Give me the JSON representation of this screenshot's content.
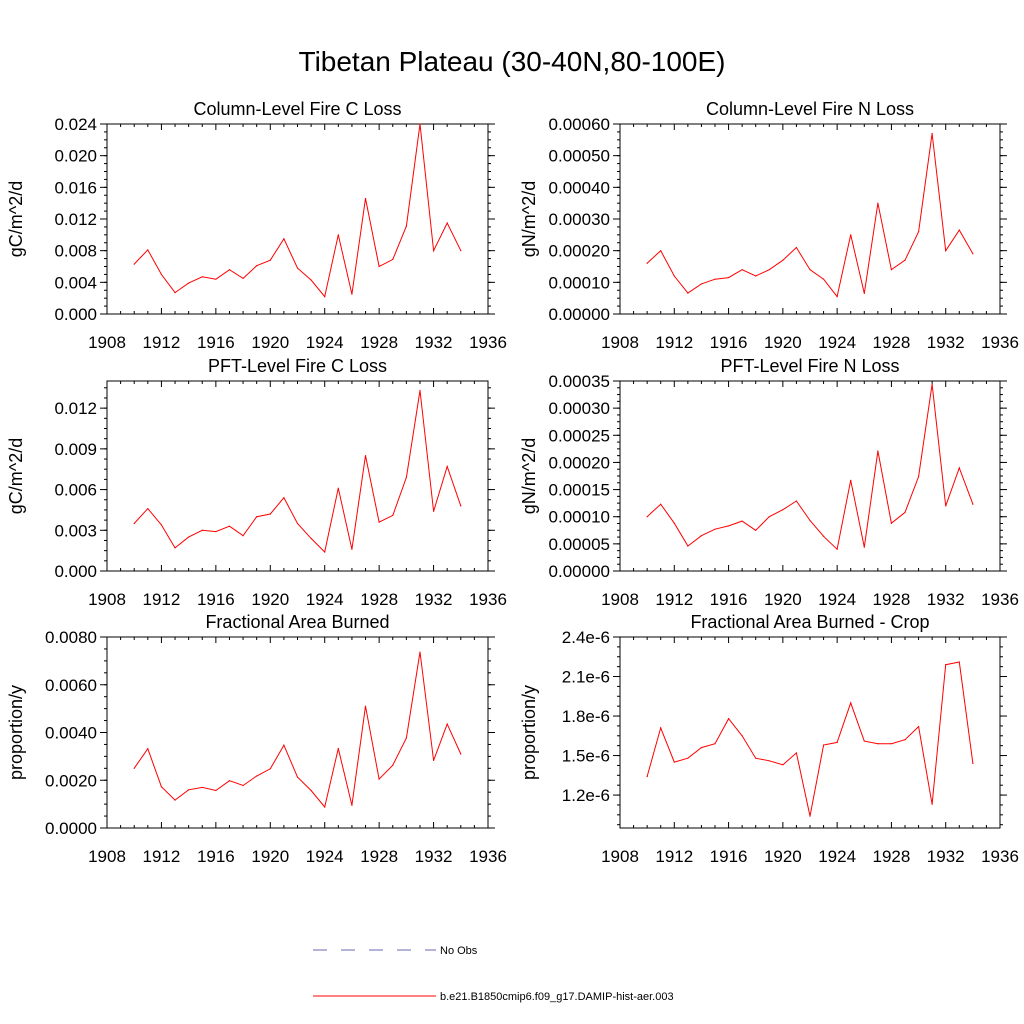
{
  "figure": {
    "title": "Tibetan Plateau (30-40N,80-100E)"
  },
  "legend": {
    "entries": [
      {
        "label": "No Obs",
        "color": "#6a6ab4",
        "dash": true
      },
      {
        "label": "b.e21.B1850cmip6.f09_g17.DAMIP-hist-aer.003",
        "color": "#ff0000",
        "dash": false
      }
    ]
  },
  "chart_data": [
    {
      "type": "line",
      "title": "Column-Level Fire C Loss",
      "ylabel": "gC/m^2/d",
      "xlim": [
        1908,
        1936
      ],
      "xticks": [
        1908,
        1912,
        1916,
        1920,
        1924,
        1928,
        1932,
        1936
      ],
      "ylim": [
        0,
        0.024
      ],
      "yticks": [
        "0.000",
        "0.004",
        "0.008",
        "0.012",
        "0.016",
        "0.020",
        "0.024"
      ],
      "x": [
        1910,
        1911,
        1912,
        1913,
        1914,
        1915,
        1916,
        1917,
        1918,
        1919,
        1920,
        1921,
        1922,
        1923,
        1924,
        1925,
        1926,
        1927,
        1928,
        1929,
        1930,
        1931,
        1932,
        1933,
        1934
      ],
      "series": [
        {
          "color": "#ff0000",
          "values": [
            0.0063,
            0.0081,
            0.005,
            0.0027,
            0.0039,
            0.0047,
            0.0044,
            0.0056,
            0.0045,
            0.0061,
            0.0068,
            0.0095,
            0.0058,
            0.0043,
            0.0022,
            0.01,
            0.0025,
            0.0146,
            0.006,
            0.0069,
            0.0111,
            0.024,
            0.008,
            0.0115,
            0.008
          ]
        }
      ]
    },
    {
      "type": "line",
      "title": "Column-Level Fire N Loss",
      "ylabel": "gN/m^2/d",
      "xlim": [
        1908,
        1936
      ],
      "xticks": [
        1908,
        1912,
        1916,
        1920,
        1924,
        1928,
        1932,
        1936
      ],
      "ylim": [
        0,
        0.0006
      ],
      "yticks": [
        "0.00000",
        "0.00010",
        "0.00020",
        "0.00030",
        "0.00040",
        "0.00050",
        "0.00060"
      ],
      "x": [
        1910,
        1911,
        1912,
        1913,
        1914,
        1915,
        1916,
        1917,
        1918,
        1919,
        1920,
        1921,
        1922,
        1923,
        1924,
        1925,
        1926,
        1927,
        1928,
        1929,
        1930,
        1931,
        1932,
        1933,
        1934
      ],
      "series": [
        {
          "color": "#ff0000",
          "values": [
            0.00016,
            0.0002,
            0.00012,
            6.6e-05,
            9.5e-05,
            0.00011,
            0.000115,
            0.00014,
            0.00012,
            0.00014,
            0.00017,
            0.00021,
            0.00014,
            0.00011,
            5.5e-05,
            0.00025,
            6.5e-05,
            0.00035,
            0.00014,
            0.00017,
            0.00026,
            0.00057,
            0.0002,
            0.000265,
            0.00019
          ]
        }
      ]
    },
    {
      "type": "line",
      "title": "PFT-Level Fire C Loss",
      "ylabel": "gC/m^2/d",
      "xlim": [
        1908,
        1936
      ],
      "xticks": [
        1908,
        1912,
        1916,
        1920,
        1924,
        1928,
        1932,
        1936
      ],
      "ylim": [
        0,
        0.014
      ],
      "yticks": [
        "0.000",
        "0.003",
        "0.006",
        "0.009",
        "0.012"
      ],
      "x": [
        1910,
        1911,
        1912,
        1913,
        1914,
        1915,
        1916,
        1917,
        1918,
        1919,
        1920,
        1921,
        1922,
        1923,
        1924,
        1925,
        1926,
        1927,
        1928,
        1929,
        1930,
        1931,
        1932,
        1933,
        1934
      ],
      "series": [
        {
          "color": "#ff0000",
          "values": [
            0.0035,
            0.0046,
            0.0034,
            0.0017,
            0.0025,
            0.003,
            0.0029,
            0.0033,
            0.0026,
            0.004,
            0.0042,
            0.0054,
            0.0035,
            0.0024,
            0.0014,
            0.0061,
            0.0016,
            0.0085,
            0.0036,
            0.0041,
            0.0069,
            0.0133,
            0.0044,
            0.0077,
            0.0048
          ]
        }
      ]
    },
    {
      "type": "line",
      "title": "PFT-Level Fire N Loss",
      "ylabel": "gN/m^2/d",
      "xlim": [
        1908,
        1936
      ],
      "xticks": [
        1908,
        1912,
        1916,
        1920,
        1924,
        1928,
        1932,
        1936
      ],
      "ylim": [
        0,
        0.00035
      ],
      "yticks": [
        "0.00000",
        "0.00005",
        "0.00010",
        "0.00015",
        "0.00020",
        "0.00025",
        "0.00030",
        "0.00035"
      ],
      "x": [
        1910,
        1911,
        1912,
        1913,
        1914,
        1915,
        1916,
        1917,
        1918,
        1919,
        1920,
        1921,
        1922,
        1923,
        1924,
        1925,
        1926,
        1927,
        1928,
        1929,
        1930,
        1931,
        1932,
        1933,
        1934
      ],
      "series": [
        {
          "color": "#ff0000",
          "values": [
            0.0001,
            0.000123,
            8.8e-05,
            4.6e-05,
            6.5e-05,
            7.7e-05,
            8.3e-05,
            9.2e-05,
            7.5e-05,
            0.0001,
            0.000113,
            0.000129,
            9.3e-05,
            6.4e-05,
            4e-05,
            0.000167,
            4.4e-05,
            0.000221,
            8.8e-05,
            0.000108,
            0.000174,
            0.000344,
            0.00012,
            0.00019,
            0.000123
          ]
        }
      ]
    },
    {
      "type": "line",
      "title": "Fractional Area Burned",
      "ylabel": "proportion/y",
      "xlim": [
        1908,
        1936
      ],
      "xticks": [
        1908,
        1912,
        1916,
        1920,
        1924,
        1928,
        1932,
        1936
      ],
      "ylim": [
        0,
        0.008
      ],
      "yticks": [
        "0.0000",
        "0.0020",
        "0.0040",
        "0.0060",
        "0.0080"
      ],
      "x": [
        1910,
        1911,
        1912,
        1913,
        1914,
        1915,
        1916,
        1917,
        1918,
        1919,
        1920,
        1921,
        1922,
        1923,
        1924,
        1925,
        1926,
        1927,
        1928,
        1929,
        1930,
        1931,
        1932,
        1933,
        1934
      ],
      "series": [
        {
          "color": "#ff0000",
          "values": [
            0.0025,
            0.00332,
            0.00173,
            0.00117,
            0.0016,
            0.0017,
            0.00157,
            0.00198,
            0.00178,
            0.00218,
            0.00248,
            0.00347,
            0.00213,
            0.00157,
            0.00088,
            0.00333,
            0.00095,
            0.0051,
            0.00205,
            0.00263,
            0.00377,
            0.00737,
            0.00283,
            0.00435,
            0.0031
          ]
        }
      ]
    },
    {
      "type": "line",
      "title": "Fractional Area Burned - Crop",
      "ylabel": "proportion/y",
      "xlim": [
        1908,
        1936
      ],
      "xticks": [
        1908,
        1912,
        1916,
        1920,
        1924,
        1928,
        1932,
        1936
      ],
      "ylim": [
        9.5e-07,
        2.4e-06
      ],
      "yticks": [
        "1.2e-6",
        "1.5e-6",
        "1.8e-6",
        "2.1e-6",
        "2.4e-6"
      ],
      "x": [
        1910,
        1911,
        1912,
        1913,
        1914,
        1915,
        1916,
        1917,
        1918,
        1919,
        1920,
        1921,
        1922,
        1923,
        1924,
        1925,
        1926,
        1927,
        1928,
        1929,
        1930,
        1931,
        1932,
        1933,
        1934
      ],
      "series": [
        {
          "color": "#ff0000",
          "values": [
            1.34e-06,
            1.71e-06,
            1.45e-06,
            1.48e-06,
            1.56e-06,
            1.59e-06,
            1.78e-06,
            1.65e-06,
            1.48e-06,
            1.46e-06,
            1.43e-06,
            1.52e-06,
            1.04e-06,
            1.58e-06,
            1.6e-06,
            1.9e-06,
            1.61e-06,
            1.59e-06,
            1.59e-06,
            1.62e-06,
            1.72e-06,
            1.13e-06,
            2.19e-06,
            2.21e-06,
            1.44e-06
          ]
        }
      ]
    }
  ]
}
